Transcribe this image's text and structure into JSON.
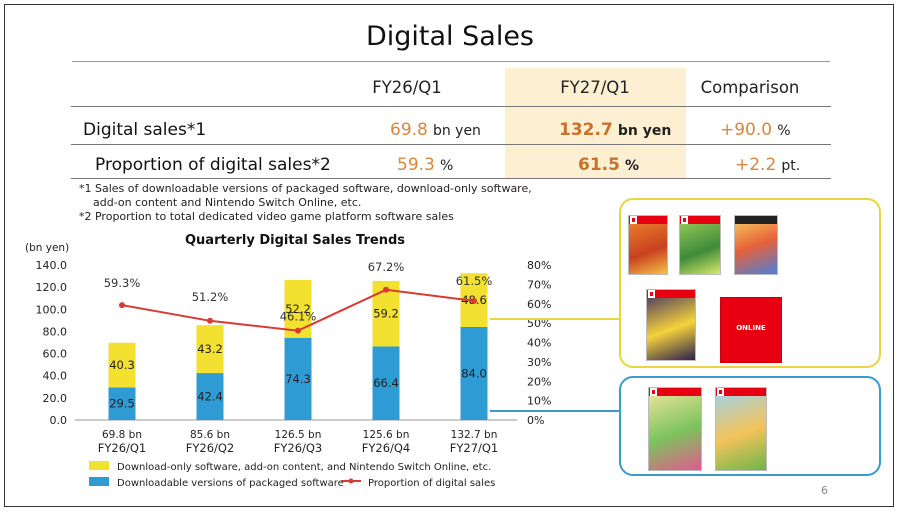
{
  "title": "Digital Sales",
  "table": {
    "columns": [
      "FY26/Q1",
      "FY27/Q1",
      "Comparison"
    ],
    "rows": [
      {
        "label": "Digital sales*1",
        "v1": "69.8",
        "u1": "bn yen",
        "v2": "132.7",
        "u2": "bn yen",
        "v3": "+90.0",
        "u3": "%"
      },
      {
        "label": "Proportion of digital sales*2",
        "v1": "59.3",
        "u1": "%",
        "v2": "61.5",
        "u2": "%",
        "v3": "+2.2",
        "u3": "pt."
      }
    ]
  },
  "footnotes": {
    "n1_line1": "*1 Sales of downloadable versions of packaged software, download-only software,",
    "n1_line2": "add-on content and Nintendo Switch Online, etc.",
    "n2": "*2 Proportion to total dedicated video game platform software sales"
  },
  "page_number": "6",
  "colors": {
    "download_only": "#f2e130",
    "packaged": "#2f9bd5",
    "proportion": "#d93a34",
    "highlight": "#fdf0d2",
    "accent": "#d9863c"
  },
  "chart_data": {
    "type": "bar",
    "title": "Quarterly Digital Sales Trends",
    "ylabel_left": "(bn yen)",
    "ylim": [
      0,
      140
    ],
    "yticks": [
      "0.0",
      "20.0",
      "40.0",
      "60.0",
      "80.0",
      "100.0",
      "120.0",
      "140.0"
    ],
    "y2lim": [
      0,
      80
    ],
    "y2ticks": [
      "0%",
      "10%",
      "20%",
      "30%",
      "40%",
      "50%",
      "60%",
      "70%",
      "80%"
    ],
    "categories": [
      "FY26/Q1",
      "FY26/Q2",
      "FY26/Q3",
      "FY26/Q4",
      "FY27/Q1"
    ],
    "totals": [
      "69.8 bn",
      "85.6 bn",
      "126.5 bn",
      "125.6 bn",
      "132.7 bn"
    ],
    "series": [
      {
        "name": "Downloadable versions of packaged software",
        "values": [
          29.5,
          42.4,
          74.3,
          66.4,
          84.0
        ],
        "labels": [
          "29.5",
          "42.4",
          "74.3",
          "66.4",
          "84.0"
        ]
      },
      {
        "name": "Download-only software, add-on content, and Nintendo Switch Online, etc.",
        "values": [
          40.3,
          43.2,
          52.2,
          59.2,
          48.6
        ],
        "labels": [
          "40.3",
          "43.2",
          "52.2",
          "59.2",
          "48.6"
        ]
      }
    ],
    "line": {
      "name": "Proportion of digital sales",
      "values": [
        59.3,
        51.2,
        46.1,
        67.2,
        61.5
      ],
      "labels": [
        "59.3%",
        "51.2%",
        "46.1%",
        "67.2%",
        "61.5%"
      ]
    },
    "legend": [
      "Download-only software, add-on content, and Nintendo Switch Online, etc.",
      "Downloadable versions of packaged software",
      "Proportion of digital sales"
    ]
  },
  "product_images": {
    "download_only_panel": [
      "game-box",
      "game-box",
      "game-box",
      "game-box",
      "online-card"
    ],
    "packaged_panel": [
      "game-box",
      "game-box"
    ],
    "online_card_text": "ONLINE"
  }
}
